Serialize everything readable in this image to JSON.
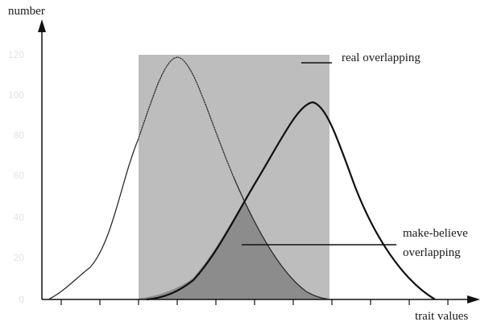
{
  "axes": {
    "y_label": "number",
    "x_label": "trait values",
    "y_ticks": [
      "0",
      "20",
      "40",
      "60",
      "80",
      "100",
      "120"
    ]
  },
  "annotations": {
    "real": "real overlapping",
    "make_believe_line1": "make-believe",
    "make_believe_line2": "overlapping"
  },
  "colors": {
    "region_light": "#bdbdbd",
    "region_dark": "#8c8c8c",
    "curve": "#111111"
  }
}
